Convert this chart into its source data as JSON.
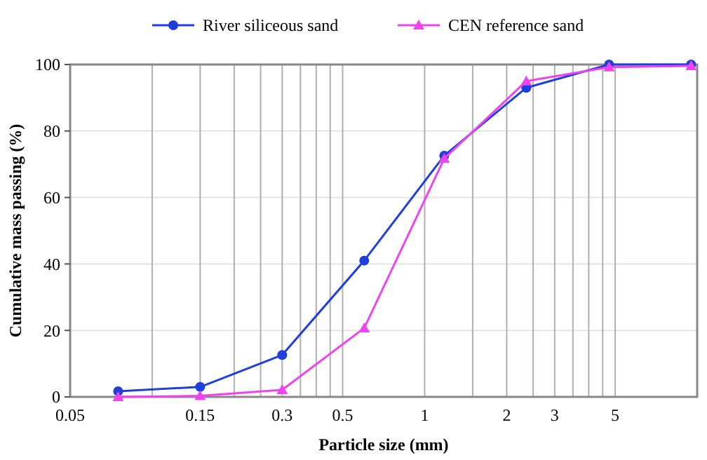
{
  "chart_data": {
    "type": "line",
    "xlabel": "Particle size (mm)",
    "ylabel": "Cumulative mass passing (%)",
    "log": "x",
    "grid": true,
    "legend": "top",
    "line_style": "solid",
    "xlim": [
      0.05,
      10
    ],
    "xticks": [
      0.05,
      {
        "value": 0.1,
        "label": null
      },
      0.15,
      {
        "value": 0.2,
        "label": null
      },
      {
        "value": 0.25,
        "label": null
      },
      0.3,
      {
        "value": 0.35,
        "label": null
      },
      {
        "value": 0.4,
        "label": null
      },
      {
        "value": 0.45,
        "label": null
      },
      0.5,
      1,
      {
        "value": 1.5,
        "label": null
      },
      2,
      {
        "value": 2.5,
        "label": null
      },
      3,
      {
        "value": 3.5,
        "label": null
      },
      {
        "value": 4,
        "label": null
      },
      {
        "value": 4.5,
        "label": null
      },
      5
    ],
    "ylim": [
      0,
      100
    ],
    "yticks": [
      0,
      20,
      40,
      60,
      80,
      100
    ],
    "series": [
      {
        "name": "River siliceous sand",
        "color": "#1f3fdc",
        "marker": "circle",
        "x": [
          0.075,
          0.15,
          0.3,
          0.6,
          1.18,
          2.36,
          4.75,
          9.5
        ],
        "values": [
          1.7,
          3,
          12.6,
          41,
          72.6,
          93,
          100,
          100
        ]
      },
      {
        "name": "CEN reference sand",
        "color": "#ee44ee",
        "marker": "triangle",
        "x": [
          0.075,
          0.15,
          0.3,
          0.6,
          1.18,
          2.36,
          4.75,
          9.5
        ],
        "values": [
          0,
          0.3,
          2.1,
          20.7,
          71.7,
          95,
          99.2,
          99.6
        ]
      }
    ]
  }
}
